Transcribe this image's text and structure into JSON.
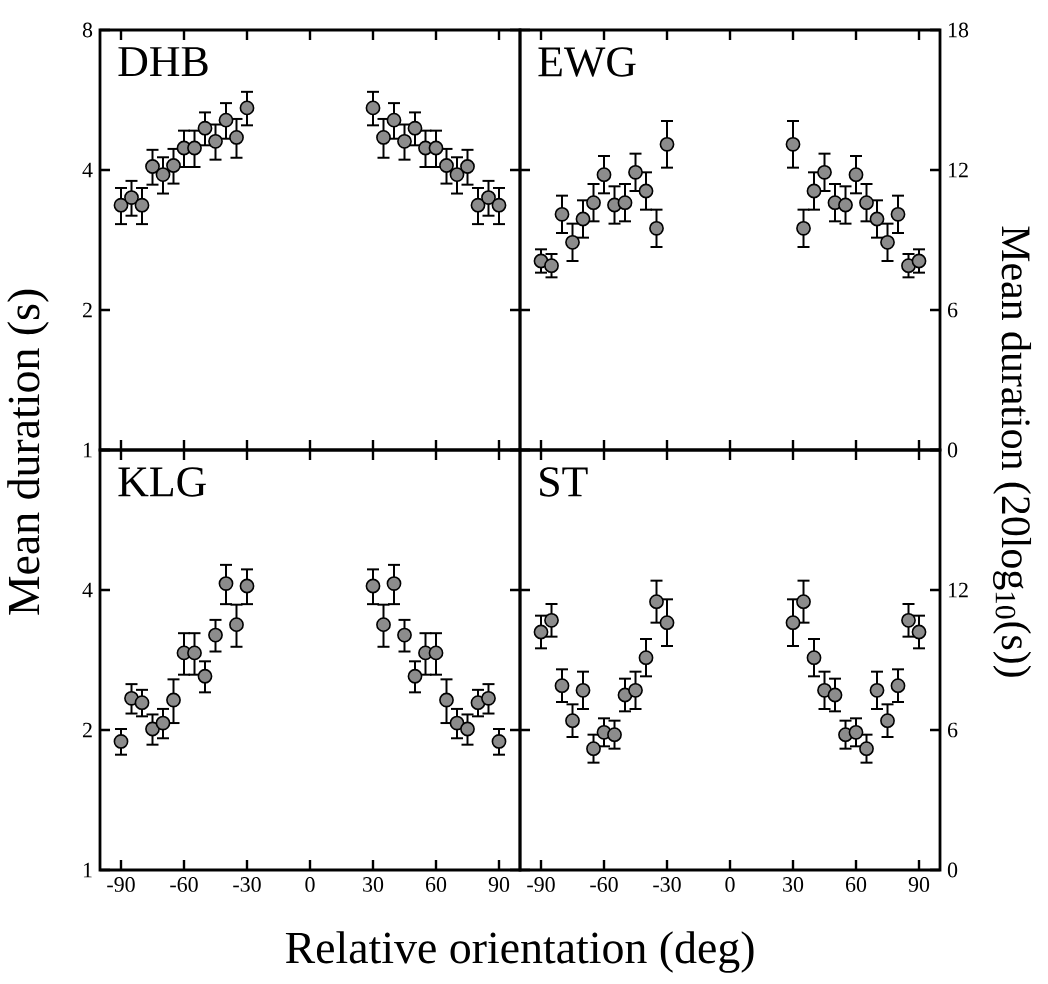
{
  "chart_data": [
    {
      "type": "scatter",
      "title": "DHB",
      "ylabel": "Mean duration (s)",
      "log": "y",
      "marker": "circle",
      "color": "#8c8c8c",
      "tick_labels": "y",
      "x": [
        -90,
        -85,
        -80,
        -75,
        -70,
        -65,
        -60,
        -55,
        -50,
        -45,
        -40,
        -35,
        -30,
        30,
        35,
        40,
        45,
        50,
        55,
        60,
        65,
        70,
        75,
        80,
        85,
        90
      ],
      "values": [
        3.36,
        3.49,
        3.36,
        4.07,
        3.91,
        4.09,
        4.46,
        4.46,
        4.92,
        4.61,
        5.12,
        4.7,
        5.44,
        5.44,
        4.7,
        5.12,
        4.61,
        4.92,
        4.46,
        4.46,
        4.09,
        3.91,
        4.07,
        3.36,
        3.49,
        3.36
      ],
      "errors": [
        0.3,
        0.3,
        0.3,
        0.35,
        0.35,
        0.35,
        0.4,
        0.4,
        0.4,
        0.4,
        0.45,
        0.45,
        0.45,
        0.45,
        0.45,
        0.45,
        0.4,
        0.4,
        0.4,
        0.4,
        0.35,
        0.35,
        0.35,
        0.3,
        0.3,
        0.3
      ],
      "xlim": [
        -100,
        100
      ],
      "xticks": [
        -90,
        -60,
        -30,
        0,
        30,
        60,
        90
      ],
      "ylim": [
        1,
        8
      ],
      "yticks": [
        1,
        2,
        4,
        8
      ]
    },
    {
      "type": "scatter",
      "title": "EWG",
      "ylabel": "Mean duration (20log$_{10}$(s))",
      "marker": "circle",
      "color": "#8c8c8c",
      "tick_labels": "y",
      "x": [
        -90,
        -85,
        -80,
        -75,
        -70,
        -65,
        -60,
        -55,
        -50,
        -45,
        -40,
        -35,
        -30,
        30,
        35,
        40,
        45,
        50,
        55,
        60,
        65,
        70,
        75,
        80,
        85,
        90
      ],
      "values": [
        8.1,
        7.9,
        10.1,
        8.9,
        9.9,
        10.6,
        11.8,
        10.5,
        10.6,
        11.9,
        11.1,
        9.5,
        13.1,
        13.1,
        9.5,
        11.1,
        11.9,
        10.6,
        10.5,
        11.8,
        10.6,
        9.9,
        8.9,
        10.1,
        7.9,
        8.1
      ],
      "errors": [
        0.5,
        0.5,
        0.8,
        0.8,
        0.8,
        0.8,
        0.8,
        0.8,
        0.8,
        0.8,
        0.8,
        0.8,
        1.0,
        1.0,
        0.8,
        0.8,
        0.8,
        0.8,
        0.8,
        0.8,
        0.8,
        0.8,
        0.8,
        0.8,
        0.5,
        0.5
      ],
      "xlim": [
        -100,
        100
      ],
      "xticks": [
        -90,
        -60,
        -30,
        0,
        30,
        60,
        90
      ],
      "ylim": [
        0,
        18
      ],
      "yticks": [
        0,
        6,
        12,
        18
      ]
    },
    {
      "type": "scatter",
      "title": "KLG",
      "xlabel": "Relative orientation (deg)",
      "log": "y",
      "marker": "circle",
      "color": "#8c8c8c",
      "x": [
        -90,
        -85,
        -80,
        -75,
        -70,
        -65,
        -60,
        -55,
        -50,
        -45,
        -40,
        -35,
        -30,
        30,
        35,
        40,
        45,
        50,
        55,
        60,
        65,
        70,
        75,
        80,
        85,
        90
      ],
      "values": [
        1.89,
        2.34,
        2.29,
        2.01,
        2.07,
        2.32,
        2.93,
        2.93,
        2.61,
        3.2,
        4.13,
        3.37,
        4.08,
        4.08,
        3.37,
        4.13,
        3.2,
        2.61,
        2.93,
        2.93,
        2.32,
        2.07,
        2.01,
        2.29,
        2.34,
        1.89
      ],
      "errors": [
        0.12,
        0.17,
        0.15,
        0.15,
        0.15,
        0.25,
        0.3,
        0.3,
        0.2,
        0.25,
        0.4,
        0.35,
        0.35,
        0.35,
        0.35,
        0.4,
        0.25,
        0.2,
        0.3,
        0.3,
        0.25,
        0.15,
        0.15,
        0.15,
        0.17,
        0.12
      ],
      "xlim": [
        -100,
        100
      ],
      "xticks": [
        -90,
        -60,
        -30,
        0,
        30,
        60,
        90
      ],
      "ylim": [
        1,
        8
      ],
      "yticks": [
        1,
        2,
        4,
        {
          "value": 8,
          "label": null
        }
      ]
    },
    {
      "type": "scatter",
      "title": "ST",
      "marker": "circle",
      "color": "#8c8c8c",
      "x": [
        -90,
        -85,
        -80,
        -75,
        -70,
        -65,
        -60,
        -55,
        -50,
        -45,
        -40,
        -35,
        -30,
        30,
        35,
        40,
        45,
        50,
        55,
        60,
        65,
        70,
        75,
        80,
        85,
        90
      ],
      "values": [
        10.2,
        10.7,
        7.9,
        6.4,
        7.7,
        5.2,
        5.9,
        5.8,
        7.5,
        7.7,
        9.1,
        11.5,
        10.6,
        10.6,
        11.5,
        9.1,
        7.7,
        7.5,
        5.8,
        5.9,
        5.2,
        7.7,
        6.4,
        7.9,
        10.7,
        10.2
      ],
      "errors": [
        0.7,
        0.7,
        0.7,
        0.7,
        0.8,
        0.6,
        0.6,
        0.6,
        0.7,
        0.8,
        0.8,
        0.9,
        1.0,
        1.0,
        0.9,
        0.8,
        0.8,
        0.7,
        0.6,
        0.6,
        0.6,
        0.8,
        0.7,
        0.7,
        0.7,
        0.7
      ],
      "xlim": [
        -100,
        100
      ],
      "xticks": [
        -90,
        -60,
        -30,
        0,
        30,
        60,
        90
      ],
      "ylim": [
        0,
        18
      ],
      "yticks": [
        0,
        6,
        12,
        {
          "value": 18,
          "label": null
        }
      ]
    }
  ]
}
